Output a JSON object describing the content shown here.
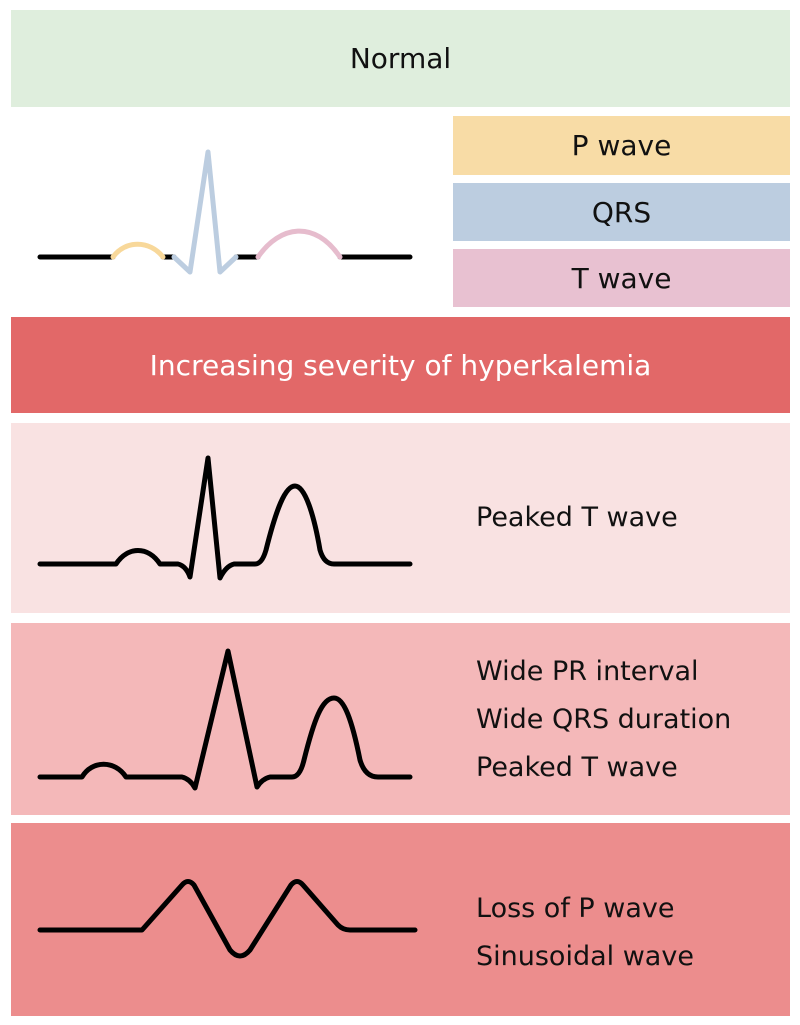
{
  "header": {
    "label": "Normal",
    "color": "#dfeedd"
  },
  "legend": [
    {
      "label": "P wave",
      "color": "#f8dca6"
    },
    {
      "label": "QRS",
      "color": "#bccde0"
    },
    {
      "label": "T wave",
      "color": "#e8c1d1"
    }
  ],
  "severity_bar": {
    "label": "Increasing severity of hyperkalemia",
    "color": "#e26868"
  },
  "stages": [
    {
      "lines": [
        "Peaked T wave"
      ],
      "color": "#f9e2e2"
    },
    {
      "lines": [
        "Wide PR interval",
        "Wide QRS duration",
        "Peaked T wave"
      ],
      "color": "#f4b8b9"
    },
    {
      "lines": [
        "Loss of P wave",
        "Sinusoidal wave"
      ],
      "color": "#ec8d8d"
    }
  ]
}
